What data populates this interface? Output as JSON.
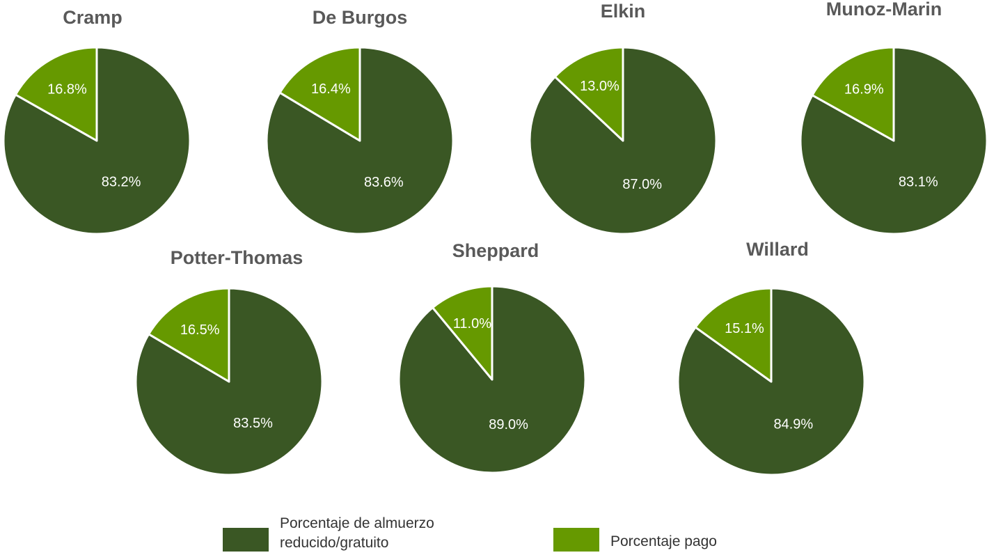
{
  "legend": {
    "categories": [
      "Porcentaje de almuerzo reducido/gratuito",
      "Porcentaje pago"
    ],
    "colors": [
      "#3a5724",
      "#669900"
    ]
  },
  "chart_data": [
    {
      "type": "pie",
      "title": "Cramp",
      "values": [
        83.2,
        16.8
      ],
      "value_labels": [
        "83.2%",
        "16.8%"
      ]
    },
    {
      "type": "pie",
      "title": "De Burgos",
      "values": [
        83.6,
        16.4
      ],
      "value_labels": [
        "83.6%",
        "16.4%"
      ]
    },
    {
      "type": "pie",
      "title": "Elkin",
      "values": [
        87.0,
        13.0
      ],
      "value_labels": [
        "87.0%",
        "13.0%"
      ]
    },
    {
      "type": "pie",
      "title": "Munoz-Marin",
      "values": [
        83.1,
        16.9
      ],
      "value_labels": [
        "83.1%",
        "16.9%"
      ]
    },
    {
      "type": "pie",
      "title": "Potter-Thomas",
      "values": [
        83.5,
        16.5
      ],
      "value_labels": [
        "83.5%",
        "16.5%"
      ]
    },
    {
      "type": "pie",
      "title": "Sheppard",
      "values": [
        89.0,
        11.0
      ],
      "value_labels": [
        "89.0%",
        "11.0%"
      ]
    },
    {
      "type": "pie",
      "title": "Willard",
      "values": [
        84.9,
        15.1
      ],
      "value_labels": [
        "84.9%",
        "15.1%"
      ]
    }
  ]
}
